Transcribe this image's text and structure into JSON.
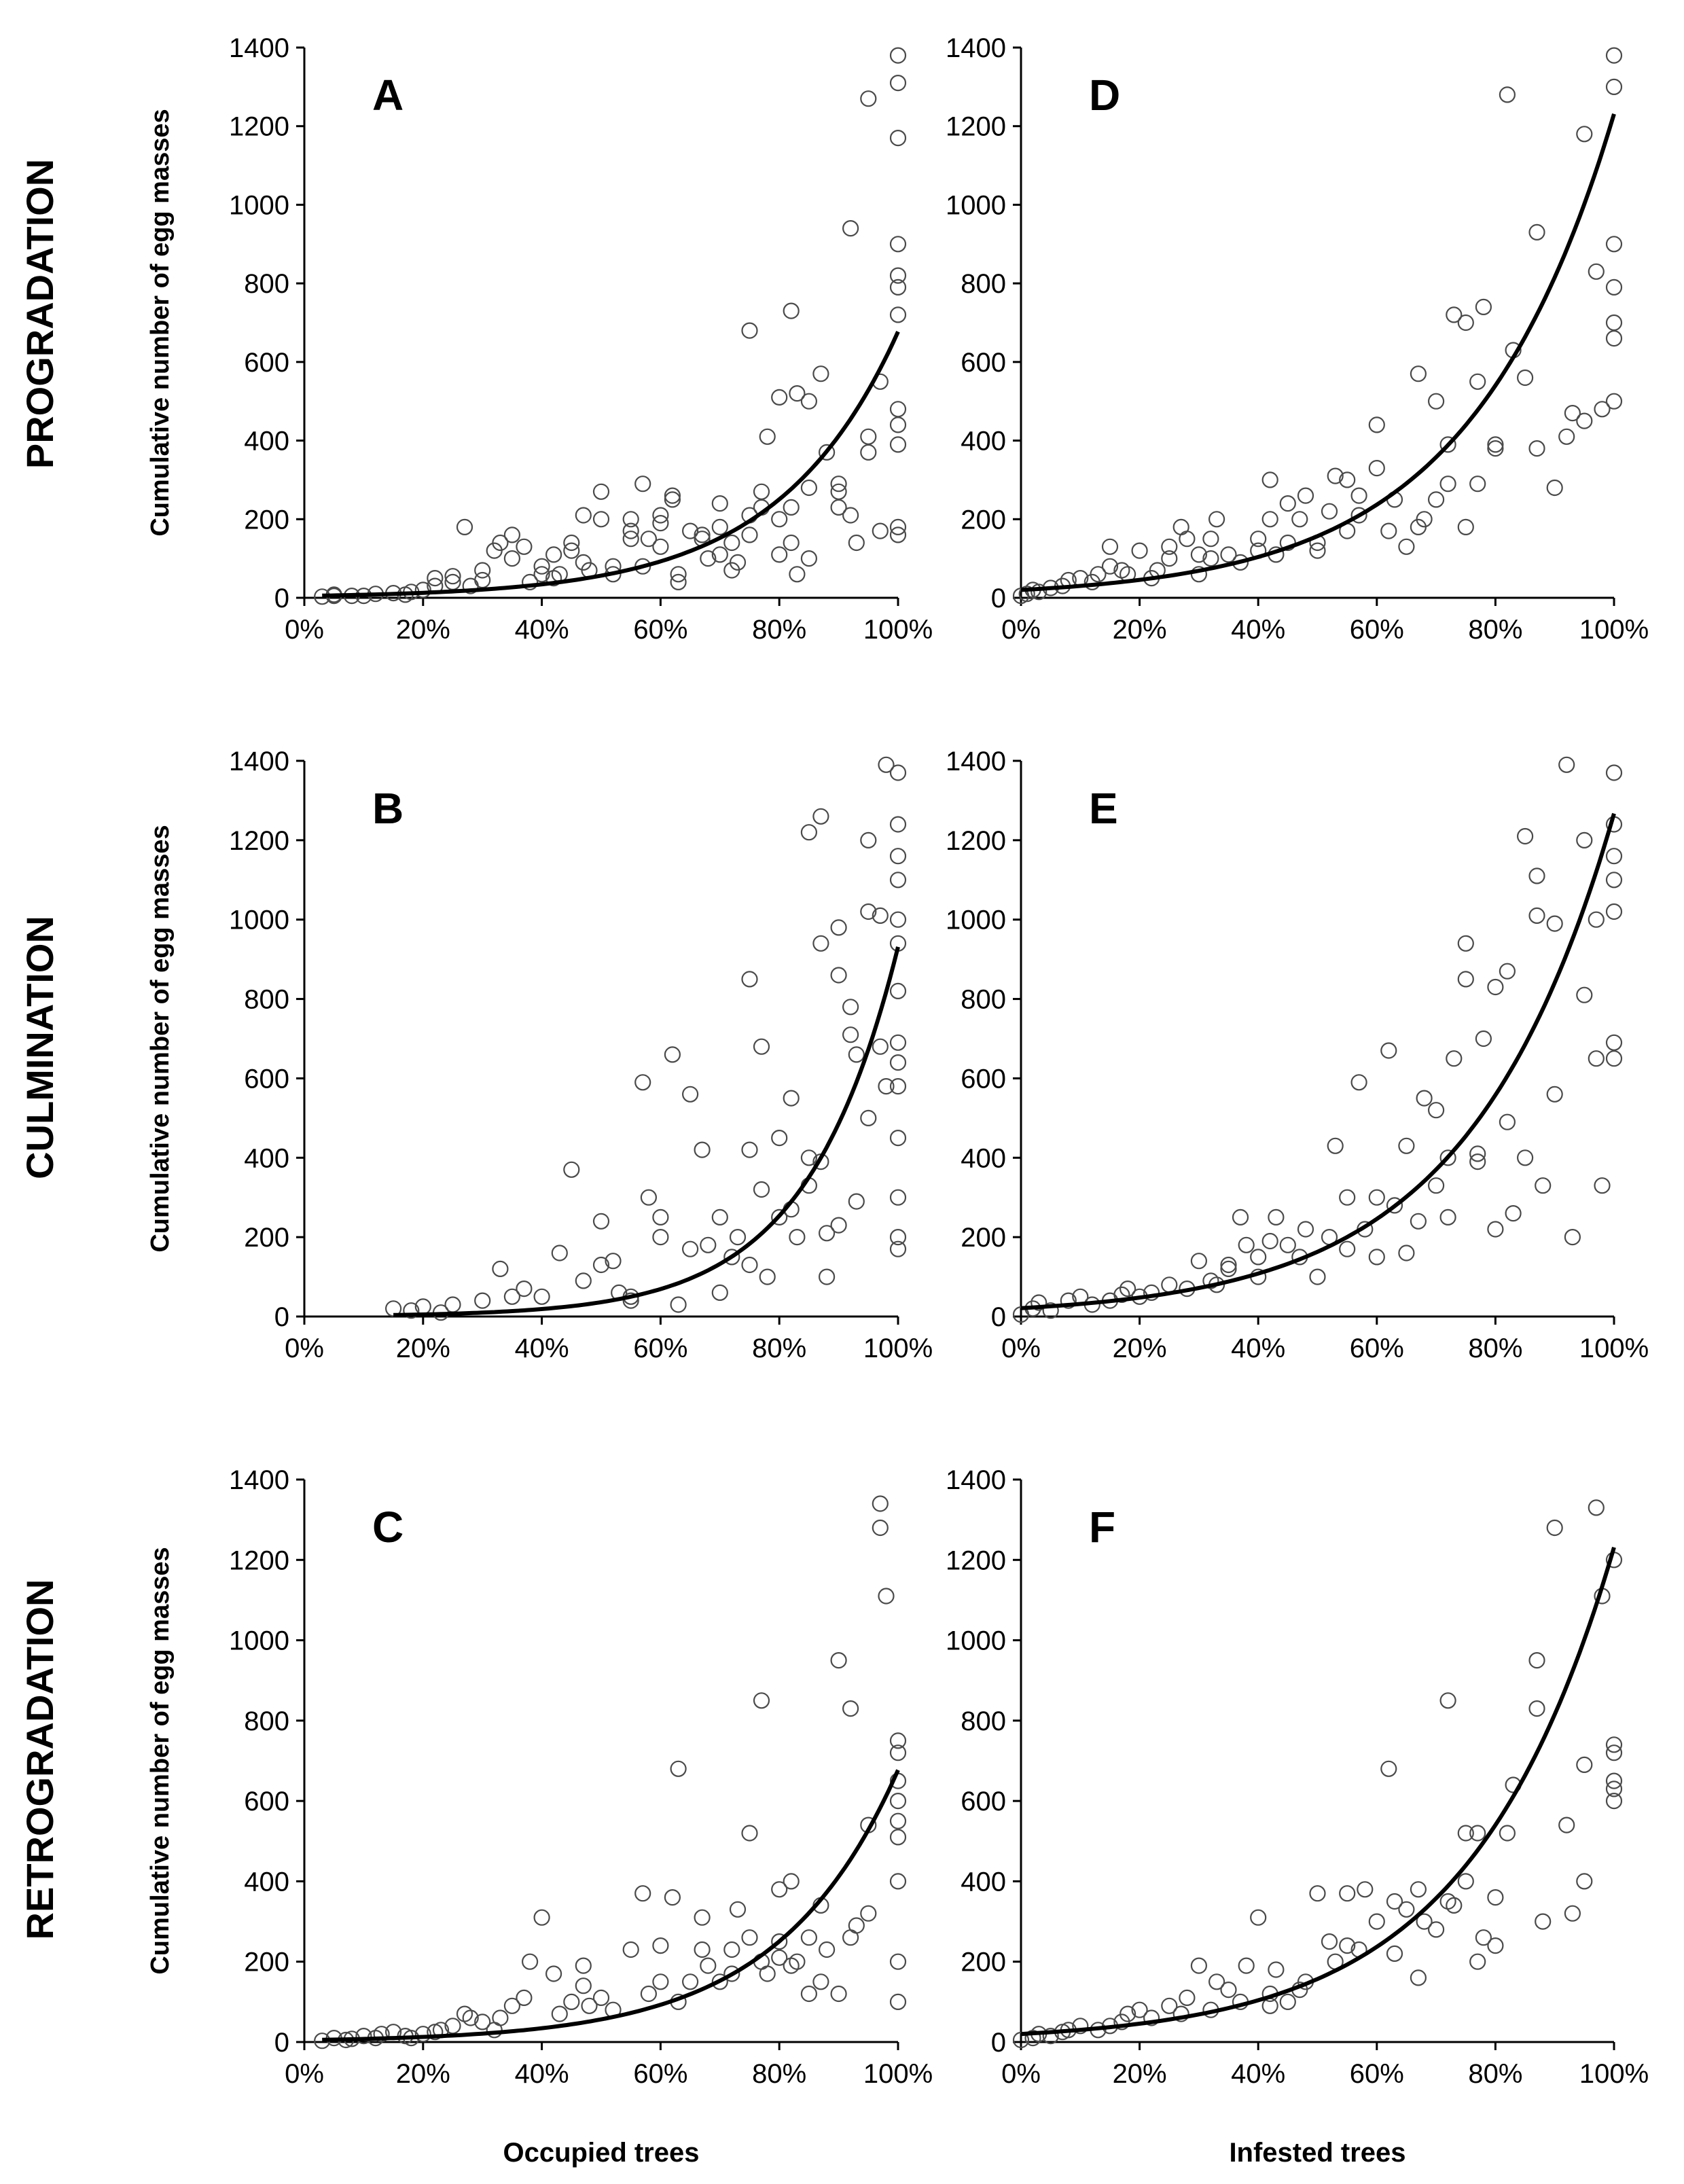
{
  "figure": {
    "row_labels": [
      "PROGRADATION",
      "CULMINATION",
      "RETROGRADATION"
    ],
    "column_xlabels": [
      "Occupied trees",
      "Infested trees"
    ]
  },
  "chart_data": [
    {
      "panel": "A",
      "type": "scatter",
      "ylabel": "Cumulative number of egg masses",
      "xlabel": "",
      "xlim": [
        0,
        100
      ],
      "ylim": [
        0,
        1400
      ],
      "xticks": [
        "0%",
        "20%",
        "40%",
        "60%",
        "80%",
        "100%"
      ],
      "yticks": [
        "0",
        "200",
        "400",
        "600",
        "800",
        "1000",
        "1200",
        "1400"
      ],
      "xtick_values": [
        0,
        20,
        40,
        60,
        80,
        100
      ],
      "ytick_values": [
        0,
        200,
        400,
        600,
        800,
        1000,
        1200,
        1400
      ],
      "fit": {
        "type": "exponential",
        "a": 4.7,
        "b": 0.0497,
        "x_from": 3,
        "x_to": 100
      },
      "x": [
        3,
        5,
        5,
        8,
        10,
        12,
        15,
        17,
        18,
        20,
        22,
        22,
        25,
        25,
        27,
        28,
        30,
        30,
        32,
        33,
        35,
        35,
        37,
        38,
        40,
        40,
        42,
        42,
        43,
        45,
        45,
        47,
        47,
        48,
        50,
        50,
        52,
        52,
        55,
        55,
        55,
        57,
        57,
        58,
        60,
        60,
        60,
        62,
        62,
        63,
        63,
        65,
        67,
        67,
        68,
        70,
        70,
        70,
        72,
        72,
        73,
        75,
        75,
        75,
        77,
        77,
        78,
        80,
        80,
        80,
        82,
        82,
        82,
        83,
        83,
        85,
        85,
        85,
        87,
        88,
        90,
        90,
        90,
        92,
        92,
        93,
        95,
        95,
        95,
        97,
        97,
        100,
        100,
        100,
        100,
        100,
        100,
        100,
        100,
        100,
        100,
        100,
        100
      ],
      "y": [
        3,
        5,
        8,
        5,
        5,
        10,
        12,
        8,
        15,
        20,
        30,
        50,
        40,
        55,
        180,
        30,
        45,
        70,
        120,
        140,
        100,
        160,
        130,
        40,
        60,
        80,
        110,
        50,
        60,
        120,
        140,
        210,
        90,
        70,
        270,
        200,
        80,
        60,
        170,
        150,
        200,
        80,
        290,
        150,
        210,
        190,
        130,
        260,
        250,
        60,
        40,
        170,
        150,
        160,
        100,
        240,
        180,
        110,
        140,
        70,
        90,
        160,
        210,
        680,
        270,
        230,
        410,
        110,
        200,
        510,
        730,
        230,
        140,
        520,
        60,
        500,
        280,
        100,
        570,
        370,
        270,
        290,
        230,
        940,
        210,
        140,
        370,
        410,
        1270,
        170,
        550,
        1380,
        1310,
        1170,
        900,
        820,
        790,
        720,
        480,
        440,
        390,
        180,
        160
      ]
    },
    {
      "panel": "B",
      "type": "scatter",
      "ylabel": "Cumulative number of egg masses",
      "xlabel": "",
      "xlim": [
        0,
        100
      ],
      "ylim": [
        0,
        1400
      ],
      "xticks": [
        "0%",
        "20%",
        "40%",
        "60%",
        "80%",
        "100%"
      ],
      "yticks": [
        "0",
        "200",
        "400",
        "600",
        "800",
        "1000",
        "1200",
        "1400"
      ],
      "xtick_values": [
        0,
        20,
        40,
        60,
        80,
        100
      ],
      "ytick_values": [
        0,
        200,
        400,
        600,
        800,
        1000,
        1200,
        1400
      ],
      "fit": {
        "type": "exponential",
        "a": 1.4,
        "b": 0.065,
        "x_from": 15,
        "x_to": 100
      },
      "x": [
        15,
        18,
        20,
        23,
        25,
        30,
        33,
        35,
        37,
        40,
        43,
        45,
        47,
        50,
        50,
        52,
        53,
        55,
        55,
        57,
        58,
        60,
        60,
        62,
        63,
        65,
        65,
        67,
        68,
        70,
        70,
        72,
        73,
        75,
        75,
        75,
        77,
        77,
        78,
        80,
        80,
        82,
        82,
        83,
        85,
        85,
        85,
        87,
        87,
        87,
        88,
        88,
        90,
        90,
        90,
        92,
        92,
        93,
        93,
        95,
        95,
        95,
        97,
        97,
        98,
        98,
        100,
        100,
        100,
        100,
        100,
        100,
        100,
        100,
        100,
        100,
        100,
        100,
        100,
        100
      ],
      "y": [
        20,
        15,
        25,
        10,
        30,
        40,
        120,
        50,
        70,
        50,
        160,
        370,
        90,
        240,
        130,
        140,
        60,
        50,
        40,
        590,
        300,
        250,
        200,
        660,
        30,
        560,
        170,
        420,
        180,
        250,
        60,
        150,
        200,
        850,
        420,
        130,
        680,
        320,
        100,
        450,
        250,
        550,
        270,
        200,
        1220,
        400,
        330,
        1260,
        940,
        390,
        210,
        100,
        980,
        860,
        230,
        780,
        710,
        660,
        290,
        1200,
        1020,
        500,
        1010,
        680,
        580,
        1390,
        1370,
        1240,
        1160,
        1100,
        1000,
        940,
        820,
        690,
        640,
        580,
        450,
        300,
        200,
        170
      ]
    },
    {
      "panel": "C",
      "type": "scatter",
      "ylabel": "Cumulative number of egg masses",
      "xlabel": "Occupied trees",
      "xlim": [
        0,
        100
      ],
      "ylim": [
        0,
        1400
      ],
      "xticks": [
        "0%",
        "20%",
        "40%",
        "60%",
        "80%",
        "100%"
      ],
      "yticks": [
        "0",
        "200",
        "400",
        "600",
        "800",
        "1000",
        "1200",
        "1400"
      ],
      "xtick_values": [
        0,
        20,
        40,
        60,
        80,
        100
      ],
      "ytick_values": [
        0,
        200,
        400,
        600,
        800,
        1000,
        1200,
        1400
      ],
      "fit": {
        "type": "exponential",
        "a": 4.7,
        "b": 0.0497,
        "x_from": 3,
        "x_to": 100
      },
      "x": [
        3,
        5,
        7,
        8,
        10,
        12,
        13,
        15,
        17,
        18,
        20,
        22,
        23,
        25,
        27,
        28,
        30,
        32,
        33,
        35,
        37,
        38,
        40,
        42,
        43,
        45,
        47,
        47,
        48,
        50,
        52,
        55,
        57,
        58,
        60,
        60,
        62,
        63,
        63,
        65,
        67,
        67,
        68,
        70,
        72,
        72,
        73,
        75,
        75,
        77,
        77,
        78,
        80,
        80,
        80,
        82,
        82,
        83,
        85,
        85,
        87,
        87,
        88,
        90,
        90,
        92,
        92,
        93,
        95,
        95,
        97,
        97,
        98,
        100,
        100,
        100,
        100,
        100,
        100,
        100,
        100,
        100
      ],
      "y": [
        3,
        10,
        5,
        8,
        15,
        10,
        20,
        25,
        15,
        10,
        20,
        25,
        30,
        40,
        70,
        60,
        50,
        30,
        60,
        90,
        110,
        200,
        310,
        170,
        70,
        100,
        140,
        190,
        90,
        110,
        80,
        230,
        370,
        120,
        150,
        240,
        360,
        680,
        100,
        150,
        230,
        310,
        190,
        150,
        170,
        230,
        330,
        520,
        260,
        850,
        200,
        170,
        210,
        380,
        250,
        400,
        190,
        200,
        260,
        120,
        340,
        150,
        230,
        950,
        120,
        260,
        830,
        290,
        540,
        320,
        1280,
        1340,
        1110,
        720,
        750,
        650,
        550,
        510,
        400,
        200,
        100,
        600
      ]
    },
    {
      "panel": "D",
      "type": "scatter",
      "ylabel": "",
      "xlabel": "",
      "xlim": [
        0,
        100
      ],
      "ylim": [
        0,
        1400
      ],
      "xticks": [
        "0%",
        "20%",
        "40%",
        "60%",
        "80%",
        "100%"
      ],
      "yticks": [
        "0",
        "200",
        "400",
        "600",
        "800",
        "1000",
        "1200",
        "1400"
      ],
      "xtick_values": [
        0,
        20,
        40,
        60,
        80,
        100
      ],
      "ytick_values": [
        0,
        200,
        400,
        600,
        800,
        1000,
        1200,
        1400
      ],
      "fit": {
        "type": "exponential",
        "a": 20,
        "b": 0.0412,
        "x_from": 0,
        "x_to": 100
      },
      "x": [
        0,
        1,
        2,
        3,
        5,
        7,
        8,
        10,
        12,
        13,
        15,
        15,
        17,
        18,
        20,
        22,
        23,
        25,
        25,
        27,
        28,
        30,
        30,
        32,
        32,
        33,
        35,
        37,
        40,
        40,
        42,
        42,
        43,
        45,
        45,
        47,
        48,
        50,
        50,
        52,
        53,
        55,
        55,
        57,
        57,
        60,
        60,
        62,
        63,
        65,
        67,
        67,
        68,
        70,
        70,
        72,
        72,
        73,
        75,
        75,
        77,
        77,
        78,
        80,
        80,
        82,
        83,
        85,
        87,
        87,
        90,
        92,
        93,
        95,
        95,
        97,
        98,
        100,
        100,
        100,
        100,
        100,
        100,
        100
      ],
      "y": [
        5,
        10,
        20,
        15,
        25,
        30,
        45,
        50,
        40,
        60,
        80,
        130,
        70,
        60,
        120,
        50,
        70,
        100,
        130,
        180,
        150,
        60,
        110,
        100,
        150,
        200,
        110,
        90,
        120,
        150,
        200,
        300,
        110,
        140,
        240,
        200,
        260,
        120,
        140,
        220,
        310,
        170,
        300,
        260,
        210,
        330,
        440,
        170,
        250,
        130,
        180,
        570,
        200,
        250,
        500,
        290,
        390,
        720,
        180,
        700,
        290,
        550,
        740,
        380,
        390,
        1280,
        630,
        560,
        380,
        930,
        280,
        410,
        470,
        1180,
        450,
        830,
        480,
        1380,
        1300,
        900,
        790,
        700,
        660,
        500
      ]
    },
    {
      "panel": "E",
      "type": "scatter",
      "ylabel": "",
      "xlabel": "",
      "xlim": [
        0,
        100
      ],
      "ylim": [
        0,
        1400
      ],
      "xticks": [
        "0%",
        "20%",
        "40%",
        "60%",
        "80%",
        "100%"
      ],
      "yticks": [
        "0",
        "200",
        "400",
        "600",
        "800",
        "1000",
        "1200",
        "1400"
      ],
      "xtick_values": [
        0,
        20,
        40,
        60,
        80,
        100
      ],
      "ytick_values": [
        0,
        200,
        400,
        600,
        800,
        1000,
        1200,
        1400
      ],
      "fit": {
        "type": "exponential",
        "a": 21,
        "b": 0.041,
        "x_from": 0,
        "x_to": 100
      },
      "x": [
        0,
        2,
        3,
        5,
        8,
        10,
        12,
        15,
        17,
        18,
        20,
        22,
        25,
        28,
        30,
        32,
        33,
        35,
        35,
        37,
        38,
        40,
        40,
        42,
        43,
        45,
        47,
        48,
        50,
        52,
        53,
        55,
        55,
        57,
        58,
        60,
        60,
        62,
        63,
        65,
        65,
        67,
        68,
        70,
        70,
        72,
        72,
        73,
        75,
        75,
        77,
        77,
        78,
        80,
        80,
        82,
        82,
        83,
        85,
        85,
        87,
        87,
        88,
        90,
        90,
        92,
        93,
        95,
        95,
        97,
        97,
        98,
        100,
        100,
        100,
        100,
        100,
        100,
        100
      ],
      "y": [
        5,
        20,
        35,
        15,
        40,
        50,
        30,
        40,
        55,
        70,
        50,
        60,
        80,
        70,
        140,
        90,
        80,
        130,
        120,
        250,
        180,
        150,
        100,
        190,
        250,
        180,
        150,
        220,
        100,
        200,
        430,
        300,
        170,
        590,
        220,
        150,
        300,
        670,
        280,
        160,
        430,
        240,
        550,
        330,
        520,
        250,
        400,
        650,
        940,
        850,
        410,
        390,
        700,
        220,
        830,
        870,
        490,
        260,
        1210,
        400,
        1010,
        1110,
        330,
        990,
        560,
        1390,
        200,
        1200,
        810,
        1000,
        650,
        330,
        1370,
        1240,
        1160,
        1100,
        1020,
        690,
        650
      ]
    },
    {
      "panel": "F",
      "type": "scatter",
      "ylabel": "",
      "xlabel": "Infested trees",
      "xlim": [
        0,
        100
      ],
      "ylim": [
        0,
        1400
      ],
      "xticks": [
        "0%",
        "20%",
        "40%",
        "60%",
        "80%",
        "100%"
      ],
      "yticks": [
        "0",
        "200",
        "400",
        "600",
        "800",
        "1000",
        "1200",
        "1400"
      ],
      "xtick_values": [
        0,
        20,
        40,
        60,
        80,
        100
      ],
      "ytick_values": [
        0,
        200,
        400,
        600,
        800,
        1000,
        1200,
        1400
      ],
      "fit": {
        "type": "exponential",
        "a": 20,
        "b": 0.0412,
        "x_from": 0,
        "x_to": 100
      },
      "x": [
        0,
        2,
        3,
        5,
        7,
        8,
        10,
        13,
        15,
        17,
        18,
        20,
        22,
        25,
        27,
        28,
        30,
        32,
        33,
        35,
        37,
        38,
        40,
        42,
        42,
        43,
        45,
        47,
        48,
        50,
        52,
        53,
        55,
        55,
        57,
        58,
        60,
        62,
        63,
        63,
        65,
        67,
        67,
        68,
        70,
        72,
        72,
        73,
        75,
        75,
        77,
        77,
        78,
        80,
        80,
        82,
        83,
        87,
        87,
        88,
        90,
        92,
        93,
        95,
        95,
        97,
        98,
        100,
        100,
        100,
        100,
        100,
        100
      ],
      "y": [
        5,
        10,
        20,
        15,
        25,
        30,
        40,
        30,
        40,
        50,
        70,
        80,
        60,
        90,
        70,
        110,
        190,
        80,
        150,
        130,
        100,
        190,
        310,
        120,
        90,
        180,
        100,
        130,
        150,
        370,
        250,
        200,
        370,
        240,
        230,
        380,
        300,
        680,
        350,
        220,
        330,
        380,
        160,
        300,
        280,
        350,
        850,
        340,
        520,
        400,
        520,
        200,
        260,
        360,
        240,
        520,
        640,
        950,
        830,
        300,
        1280,
        540,
        320,
        690,
        400,
        1330,
        1110,
        1200,
        740,
        720,
        650,
        630,
        600
      ]
    }
  ]
}
